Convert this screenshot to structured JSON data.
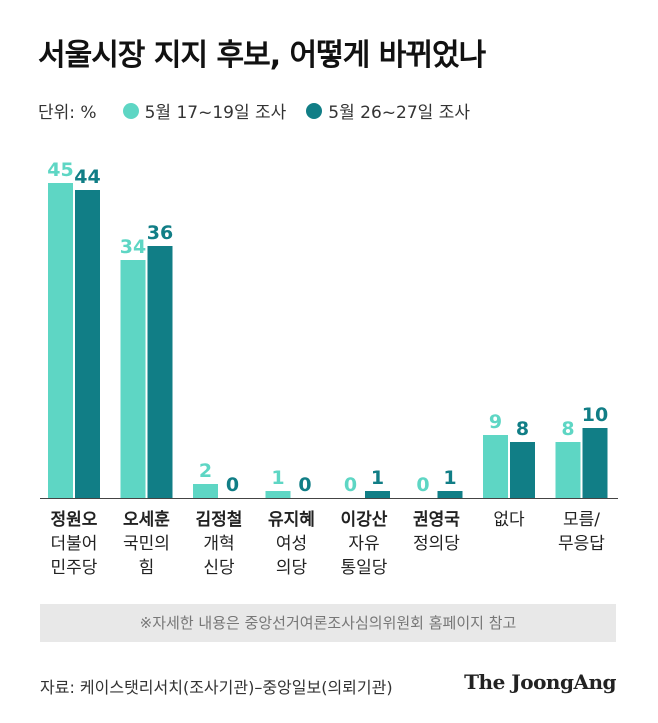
{
  "title": "서울시장 지지 후보, 어떻게 바뀌었나",
  "legend": {
    "unit": "단위: %",
    "series1": "5월 17~19일 조사",
    "series2": "5월 26~27일 조사"
  },
  "colors": {
    "series1": "#5ed6c4",
    "series2": "#117e86",
    "baseline": "#444444"
  },
  "chart_data": {
    "type": "bar",
    "title": "서울시장 지지 후보, 어떻게 바뀌었나",
    "categories": [
      {
        "name": "정원오",
        "party": [
          "더불어",
          "민주당"
        ]
      },
      {
        "name": "오세훈",
        "party": [
          "국민의",
          "힘"
        ]
      },
      {
        "name": "김정철",
        "party": [
          "개혁",
          "신당"
        ]
      },
      {
        "name": "유지혜",
        "party": [
          "여성",
          "의당"
        ]
      },
      {
        "name": "이강산",
        "party": [
          "자유",
          "통일당"
        ]
      },
      {
        "name": "권영국",
        "party": [
          "정의당"
        ]
      },
      {
        "name": "",
        "party": [
          "없다"
        ]
      },
      {
        "name": "",
        "party": [
          "모름/",
          "무응답"
        ]
      }
    ],
    "series": [
      {
        "name": "5월 17~19일 조사",
        "values": [
          45,
          34,
          2,
          1,
          0,
          0,
          9,
          8
        ]
      },
      {
        "name": "5월 26~27일 조사",
        "values": [
          44,
          36,
          0,
          0,
          1,
          1,
          8,
          10
        ]
      }
    ],
    "ylim": [
      0,
      45
    ],
    "unit": "%",
    "legend_position": "top-left",
    "grid": false
  },
  "footer": {
    "note": "※자세한 내용은 중앙선거여론조사심의위원회 홈페이지 참고",
    "source": "자료: 케이스탯리서치(조사기관)–중앙일보(의뢰기관)",
    "logo": "The JoongAng"
  }
}
